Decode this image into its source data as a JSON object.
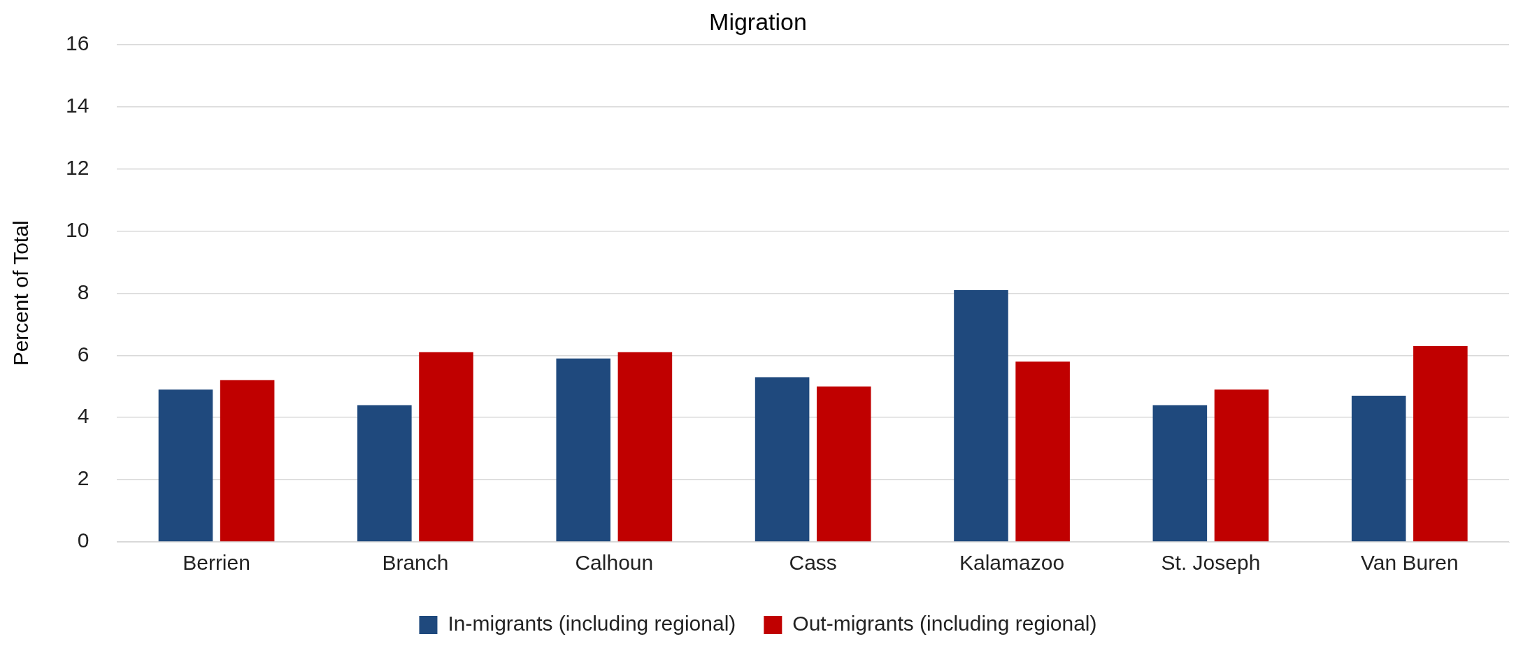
{
  "chart_data": {
    "type": "bar",
    "title": "Migration",
    "ylabel": "Percent of Total",
    "categories": [
      "Berrien",
      "Branch",
      "Calhoun",
      "Cass",
      "Kalamazoo",
      "St. Joseph",
      "Van Buren"
    ],
    "series": [
      {
        "name": "In-migrants (including regional)",
        "color": "#1f497d",
        "values": [
          4.9,
          4.4,
          5.9,
          5.3,
          8.1,
          4.4,
          4.7
        ]
      },
      {
        "name": "Out-migrants (including regional)",
        "color": "#c00000",
        "values": [
          5.2,
          6.1,
          6.1,
          5.0,
          5.8,
          4.9,
          6.3
        ]
      }
    ],
    "ylim": [
      0,
      16
    ],
    "yticks": [
      0,
      2,
      4,
      6,
      8,
      10,
      12,
      14,
      16
    ],
    "grid": "y",
    "legend": "bottom"
  }
}
